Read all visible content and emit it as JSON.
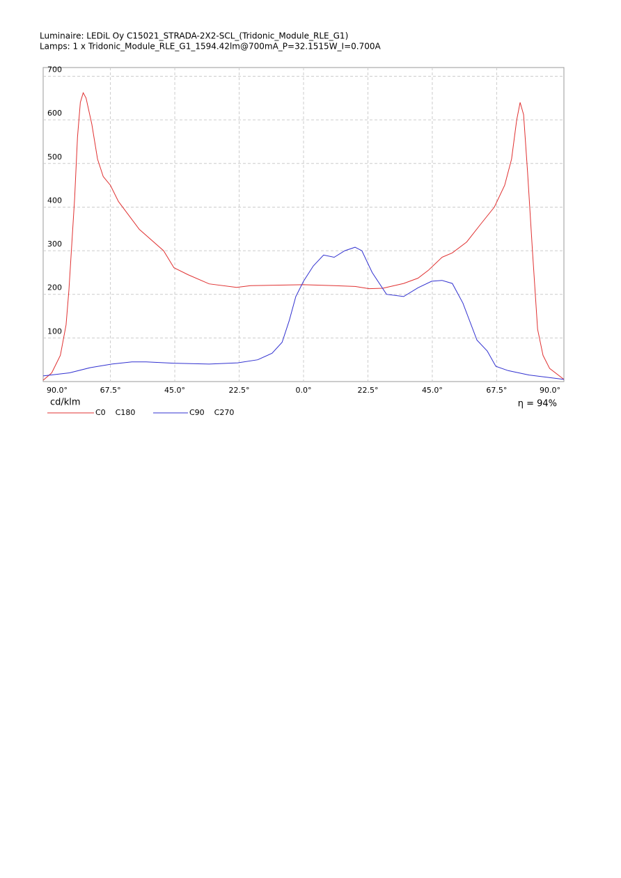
{
  "chart_data": {
    "type": "line",
    "title": "Luminaire: LEDiL Oy C15021_STRADA-2X2-SCL_(Tridonic_Module_RLE_G1)",
    "subtitle": "Lamps: 1 x Tridonic_Module_RLE_G1_1594.42lm@700mA_P=32.1515W_I=0.700A",
    "y_label": "cd/klm",
    "annotation": "η = 94%",
    "xlim": [
      -91,
      91
    ],
    "ylim": [
      0,
      720
    ],
    "xticks": [
      {
        "value": -90,
        "label": "90.0°"
      },
      {
        "value": -67.5,
        "label": "67.5°"
      },
      {
        "value": -45,
        "label": "45.0°"
      },
      {
        "value": -22.5,
        "label": "22.5°"
      },
      {
        "value": 0,
        "label": "0.0°"
      },
      {
        "value": 22.5,
        "label": "22.5°"
      },
      {
        "value": 45,
        "label": "45.0°"
      },
      {
        "value": 67.5,
        "label": "67.5°"
      },
      {
        "value": 90,
        "label": "90.0°"
      }
    ],
    "yticks": [
      100,
      200,
      300,
      400,
      500,
      600,
      700
    ],
    "grid": true,
    "series": [
      {
        "name": "C0    C180",
        "color": "#e03030",
        "x": [
          -91,
          -88,
          -85,
          -83,
          -82,
          -80,
          -79,
          -78,
          -77,
          -76,
          -74,
          -72,
          -70,
          -67.5,
          -64.7,
          -57.4,
          -48.9,
          -45.3,
          -40.4,
          -33,
          -23.4,
          -18.5,
          0,
          10.7,
          18,
          22.9,
          27.7,
          35,
          40,
          43.6,
          48.4,
          52,
          57,
          61.8,
          66.7,
          70.3,
          72.7,
          74.5,
          75.7,
          76.9,
          78.3,
          80,
          81.8,
          83.7,
          86,
          91
        ],
        "values": [
          3,
          20,
          60,
          130,
          210,
          420,
          560,
          640,
          662,
          650,
          590,
          510,
          470,
          450,
          413,
          349,
          300,
          261,
          245,
          224,
          216,
          220,
          222,
          220,
          218,
          213,
          214,
          225,
          237,
          255,
          285,
          295,
          320,
          360,
          400,
          450,
          510,
          600,
          640,
          612,
          480,
          300,
          120,
          60,
          30,
          5
        ]
      },
      {
        "name": "C90    C270",
        "color": "#3030d0",
        "x": [
          -91,
          -81.8,
          -74.5,
          -67,
          -60,
          -55,
          -45,
          -33,
          -23,
          -16,
          -11,
          -7.5,
          -5,
          -2.7,
          0,
          3.4,
          7,
          10.7,
          14.4,
          18,
          20.4,
          24,
          29,
          35,
          40,
          44.8,
          48.4,
          52,
          55.7,
          60.6,
          64.2,
          67.2,
          71.5,
          78.8,
          91
        ],
        "values": [
          13,
          20,
          32,
          40,
          45,
          45,
          42,
          40,
          43,
          50,
          65,
          90,
          140,
          195,
          230,
          265,
          290,
          285,
          300,
          308,
          300,
          250,
          200,
          195,
          215,
          230,
          232,
          225,
          180,
          95,
          70,
          35,
          25,
          15,
          5
        ]
      }
    ]
  }
}
